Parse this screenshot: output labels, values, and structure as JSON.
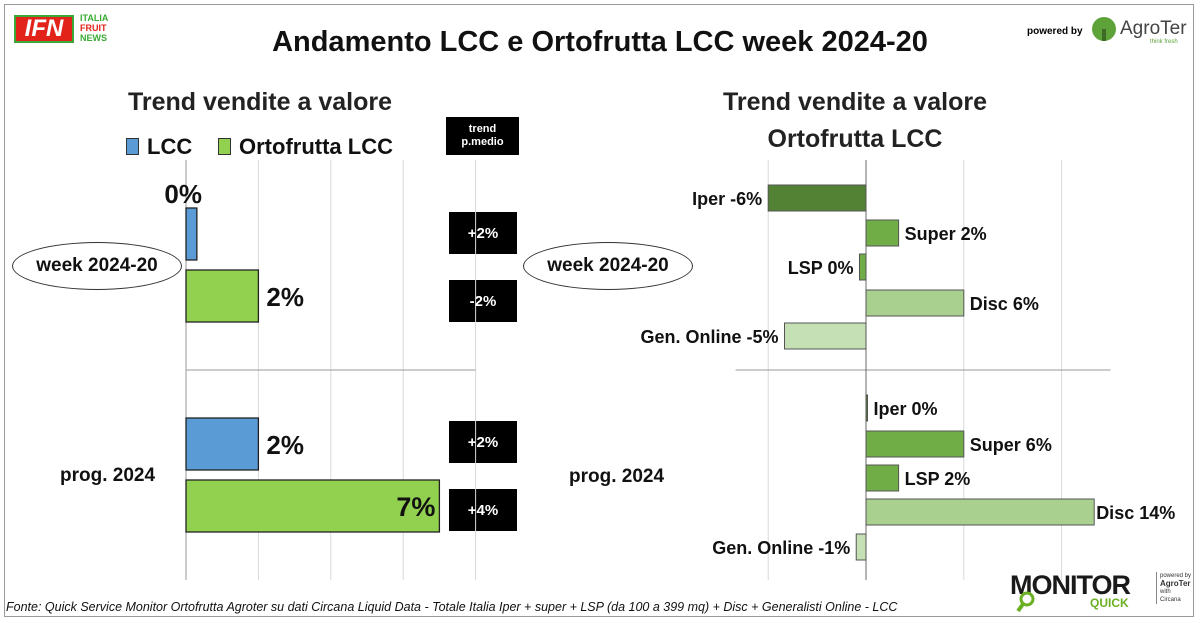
{
  "header": {
    "title": "Andamento LCC e Ortofrutta LCC week 2024-20",
    "logo_ifn": {
      "mark": "IFN",
      "lines": [
        "ITALIA",
        "FRUIT",
        "NEWS"
      ]
    },
    "powered_by": "powered by",
    "agroter_logo": {
      "name": "AgroTer",
      "tagline": "think fresh"
    }
  },
  "colors": {
    "lcc_blue": "#5b9bd5",
    "ortofrutta_green": "#92d050",
    "iper_green": "#548235",
    "super_green": "#70ad47",
    "lsp_green": "#70ad47",
    "disc_green": "#a9d08e",
    "online_green": "#c5e0b4",
    "ifn_red": "#e2231a",
    "ifn_green": "#3aa935"
  },
  "left_panel": {
    "subtitle": "Trend vendite a valore",
    "legend": [
      {
        "label": "LCC",
        "color": "#5b9bd5"
      },
      {
        "label": "Ortofrutta LCC",
        "color": "#92d050"
      }
    ],
    "trend_header": [
      "trend",
      "p.medio"
    ],
    "groups": [
      {
        "label": "week 2024-20",
        "trend_badges": [
          "+2%",
          "-2%"
        ]
      },
      {
        "label": "prog. 2024",
        "trend_badges": [
          "+2%",
          "+4%"
        ]
      }
    ]
  },
  "right_panel": {
    "subtitle_lines": [
      "Trend vendite a valore",
      "Ortofrutta LCC"
    ],
    "groups": [
      {
        "label": "week 2024-20"
      },
      {
        "label": "prog. 2024"
      }
    ]
  },
  "chart_data": [
    {
      "type": "bar",
      "orientation": "horizontal",
      "title": "Trend vendite a valore",
      "categories": [
        "week 2024-20",
        "prog. 2024"
      ],
      "series": [
        {
          "name": "LCC",
          "values": [
            0.3,
            2
          ]
        },
        {
          "name": "Ortofrutta LCC",
          "values": [
            2,
            7
          ]
        }
      ],
      "data_labels": [
        [
          "0%",
          "2%"
        ],
        [
          "2%",
          "7%"
        ]
      ],
      "xlim": [
        0,
        8
      ],
      "grid": "vertical",
      "legend": "top"
    },
    {
      "type": "bar",
      "orientation": "horizontal",
      "title": "Trend vendite a valore Ortofrutta LCC",
      "groups": [
        {
          "label": "week 2024-20",
          "bars": [
            {
              "channel": "Iper",
              "value": -6,
              "label": "Iper -6%"
            },
            {
              "channel": "Super",
              "value": 2,
              "label": "Super 2%"
            },
            {
              "channel": "LSP",
              "value": -0.4,
              "label": "LSP 0%"
            },
            {
              "channel": "Disc",
              "value": 6,
              "label": "Disc 6%"
            },
            {
              "channel": "Gen. Online",
              "value": -5,
              "label": "Gen. Online -5%"
            }
          ]
        },
        {
          "label": "prog. 2024",
          "bars": [
            {
              "channel": "Iper",
              "value": 0,
              "label": "Iper 0%"
            },
            {
              "channel": "Super",
              "value": 6,
              "label": "Super 6%"
            },
            {
              "channel": "LSP",
              "value": 2,
              "label": "LSP 2%"
            },
            {
              "channel": "Disc",
              "value": 14,
              "label": "Disc 14%"
            },
            {
              "channel": "Gen. Online",
              "value": -0.6,
              "label": "Gen. Online -1%"
            }
          ]
        }
      ],
      "xlim": [
        -8,
        15
      ],
      "grid": "vertical"
    }
  ],
  "footer": {
    "source": "Fonte: Quick Service Monitor Ortofrutta Agroter su dati Circana Liquid Data - Totale Italia Iper + super + LSP (da 100 a 399 mq) + Disc + Generalisti Online - LCC",
    "monitor_logo": {
      "word": "MONITOR",
      "sub": "QUICK",
      "credits": [
        "powered by",
        "AgroTer",
        "with",
        "Circana"
      ]
    }
  }
}
